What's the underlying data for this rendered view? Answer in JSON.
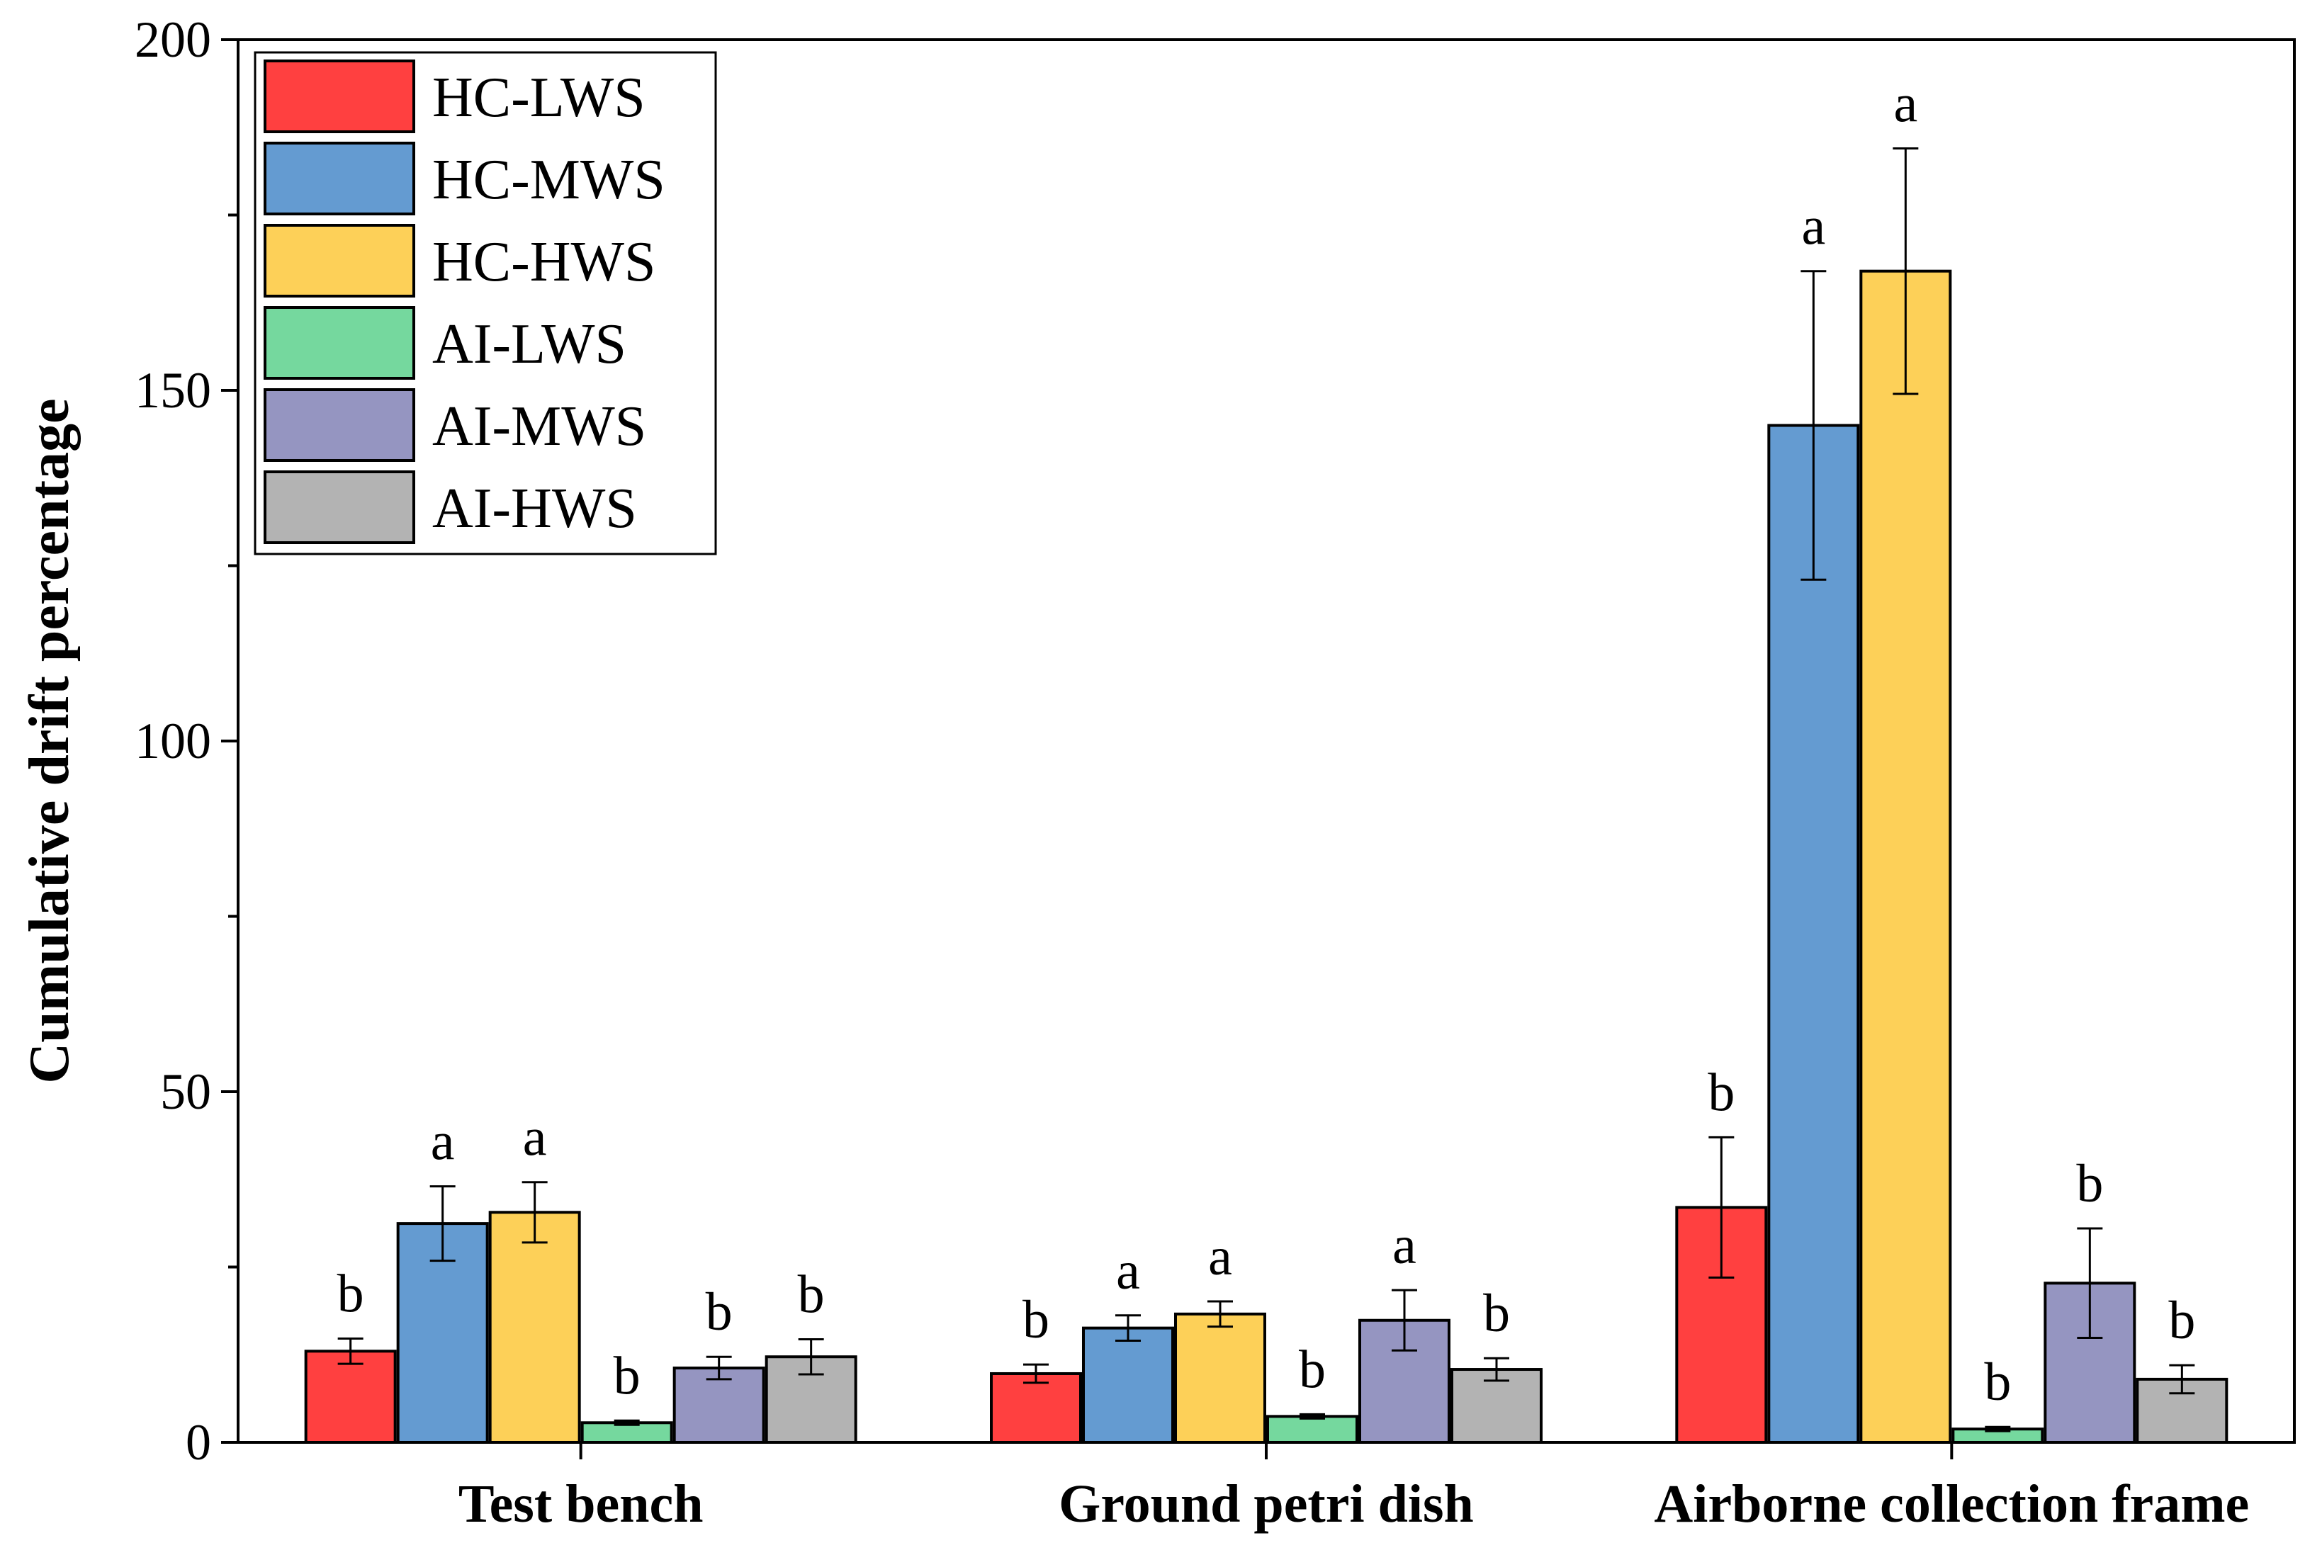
{
  "chart_data": {
    "type": "bar",
    "title": "",
    "xlabel": "",
    "ylabel": "Cumulative drift percentage",
    "ylim": [
      0,
      200
    ],
    "yticks": [
      0,
      50,
      100,
      150,
      200
    ],
    "grid": false,
    "legend_position": "top-left",
    "categories": [
      "Test bench",
      "Ground petri dish",
      "Airborne collection frame"
    ],
    "series": [
      {
        "name": "HC-LWS",
        "color": "#ff4040",
        "values": [
          13.0,
          9.8,
          33.5
        ],
        "errors": [
          1.8,
          1.3,
          10.0
        ],
        "sig": [
          "b",
          "b",
          "b"
        ]
      },
      {
        "name": "HC-MWS",
        "color": "#649bd1",
        "values": [
          31.2,
          16.3,
          145.0
        ],
        "errors": [
          5.3,
          1.8,
          22.0
        ],
        "sig": [
          "a",
          "a",
          "a"
        ]
      },
      {
        "name": "HC-HWS",
        "color": "#fdd058",
        "values": [
          32.8,
          18.3,
          167.0
        ],
        "errors": [
          4.3,
          1.8,
          17.5
        ],
        "sig": [
          "a",
          "a",
          "a"
        ]
      },
      {
        "name": "AI-LWS",
        "color": "#75d89e",
        "values": [
          2.8,
          3.7,
          1.9
        ],
        "errors": [
          0.3,
          0.3,
          0.3
        ],
        "sig": [
          "b",
          "b",
          "b"
        ]
      },
      {
        "name": "AI-MWS",
        "color": "#9595c1",
        "values": [
          10.6,
          17.4,
          22.7
        ],
        "errors": [
          1.6,
          4.3,
          7.8
        ],
        "sig": [
          "b",
          "a",
          "b"
        ]
      },
      {
        "name": "AI-HWS",
        "color": "#b3b3b3",
        "values": [
          12.2,
          10.4,
          9.0
        ],
        "errors": [
          2.5,
          1.6,
          2.0
        ],
        "sig": [
          "b",
          "b",
          "b"
        ]
      }
    ]
  }
}
